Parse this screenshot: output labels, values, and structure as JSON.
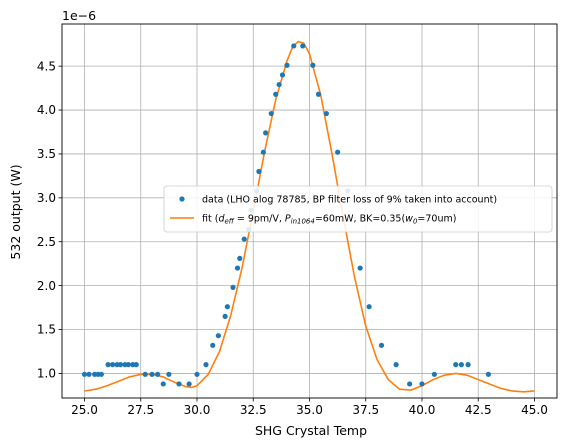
{
  "chart_data": {
    "type": "scatter",
    "xlabel": "SHG Crystal Temp",
    "ylabel": "532 output (W)",
    "y_offset_text": "1e−6",
    "xlim": [
      24.0,
      46.0
    ],
    "ylim": [
      0.72,
      4.98
    ],
    "x_ticks": [
      25.0,
      27.5,
      30.0,
      32.5,
      35.0,
      37.5,
      40.0,
      42.5,
      45.0
    ],
    "x_tick_labels": [
      "25.0",
      "27.5",
      "30.0",
      "32.5",
      "35.0",
      "37.5",
      "40.0",
      "42.5",
      "45.0"
    ],
    "y_ticks": [
      1.0,
      1.5,
      2.0,
      2.5,
      3.0,
      3.5,
      4.0,
      4.5
    ],
    "y_tick_labels": [
      "1.0",
      "1.5",
      "2.0",
      "2.5",
      "3.0",
      "3.5",
      "4.0",
      "4.5"
    ],
    "grid": true,
    "legend_placement": "center-right",
    "series": [
      {
        "name": "data (LHO alog 78785, BP filter loss of 9% taken into account)",
        "kind": "scatter",
        "color": "#1f77b4",
        "points": [
          [
            25.0,
            0.99
          ],
          [
            25.2,
            0.99
          ],
          [
            25.45,
            0.99
          ],
          [
            25.6,
            0.99
          ],
          [
            25.75,
            0.99
          ],
          [
            26.05,
            1.1
          ],
          [
            26.25,
            1.1
          ],
          [
            26.45,
            1.1
          ],
          [
            26.6,
            1.1
          ],
          [
            26.8,
            1.1
          ],
          [
            26.95,
            1.1
          ],
          [
            27.15,
            1.1
          ],
          [
            27.3,
            1.1
          ],
          [
            27.7,
            0.99
          ],
          [
            28.0,
            0.99
          ],
          [
            28.25,
            0.99
          ],
          [
            28.5,
            0.88
          ],
          [
            28.75,
            0.99
          ],
          [
            29.2,
            0.88
          ],
          [
            29.65,
            0.88
          ],
          [
            30.0,
            0.99
          ],
          [
            30.4,
            1.1
          ],
          [
            30.7,
            1.32
          ],
          [
            30.95,
            1.43
          ],
          [
            31.25,
            1.65
          ],
          [
            31.35,
            1.76
          ],
          [
            31.6,
            1.98
          ],
          [
            31.8,
            2.2
          ],
          [
            31.9,
            2.31
          ],
          [
            32.1,
            2.53
          ],
          [
            32.3,
            2.64
          ],
          [
            32.4,
            2.86
          ],
          [
            32.65,
            3.08
          ],
          [
            32.75,
            3.3
          ],
          [
            32.95,
            3.52
          ],
          [
            33.05,
            3.74
          ],
          [
            33.3,
            3.96
          ],
          [
            33.5,
            4.18
          ],
          [
            33.65,
            4.29
          ],
          [
            33.8,
            4.4
          ],
          [
            34.0,
            4.51
          ],
          [
            34.3,
            4.73
          ],
          [
            34.7,
            4.73
          ],
          [
            35.15,
            4.51
          ],
          [
            35.4,
            4.18
          ],
          [
            35.75,
            3.96
          ],
          [
            36.25,
            3.52
          ],
          [
            36.7,
            3.08
          ],
          [
            37.25,
            2.2
          ],
          [
            37.65,
            1.76
          ],
          [
            38.2,
            1.32
          ],
          [
            38.85,
            1.1
          ],
          [
            39.45,
            0.88
          ],
          [
            40.0,
            0.88
          ],
          [
            40.55,
            0.99
          ],
          [
            41.5,
            1.1
          ],
          [
            41.75,
            1.1
          ],
          [
            42.05,
            1.1
          ],
          [
            42.95,
            0.99
          ]
        ]
      },
      {
        "name": "fit (d_eff = 9pm/V, P_in1064=60mW, BK=0.35(w0=70um)",
        "kind": "line",
        "color": "#ff7f0e",
        "points": [
          [
            25.0,
            0.8
          ],
          [
            25.5,
            0.82
          ],
          [
            26.0,
            0.86
          ],
          [
            26.5,
            0.91
          ],
          [
            27.0,
            0.96
          ],
          [
            27.5,
            0.99
          ],
          [
            28.0,
            0.99
          ],
          [
            28.5,
            0.96
          ],
          [
            29.0,
            0.9
          ],
          [
            29.5,
            0.85
          ],
          [
            29.75,
            0.84
          ],
          [
            30.0,
            0.86
          ],
          [
            30.5,
            0.99
          ],
          [
            31.0,
            1.25
          ],
          [
            31.5,
            1.66
          ],
          [
            32.0,
            2.2
          ],
          [
            32.5,
            2.85
          ],
          [
            33.0,
            3.52
          ],
          [
            33.5,
            4.12
          ],
          [
            34.0,
            4.56
          ],
          [
            34.25,
            4.72
          ],
          [
            34.5,
            4.78
          ],
          [
            34.75,
            4.76
          ],
          [
            35.0,
            4.64
          ],
          [
            35.5,
            4.17
          ],
          [
            36.0,
            3.5
          ],
          [
            36.5,
            2.78
          ],
          [
            37.0,
            2.1
          ],
          [
            37.5,
            1.54
          ],
          [
            38.0,
            1.16
          ],
          [
            38.5,
            0.93
          ],
          [
            39.0,
            0.82
          ],
          [
            39.5,
            0.81
          ],
          [
            40.0,
            0.86
          ],
          [
            40.5,
            0.93
          ],
          [
            41.0,
            0.98
          ],
          [
            41.5,
            1.0
          ],
          [
            42.0,
            0.98
          ],
          [
            42.5,
            0.93
          ],
          [
            43.0,
            0.88
          ],
          [
            43.5,
            0.83
          ],
          [
            44.0,
            0.8
          ],
          [
            44.5,
            0.79
          ],
          [
            45.0,
            0.8
          ]
        ]
      }
    ],
    "legend_fit_parts": {
      "prefix": "fit (",
      "d": "d",
      "d_sub": "eff",
      "mid1": " = 9pm/V, ",
      "p": "P",
      "p_sub": "in1064",
      "mid2": "=60mW, BK=0.35(",
      "w": "w",
      "w_sub": "0",
      "suffix": "=70um)"
    }
  }
}
